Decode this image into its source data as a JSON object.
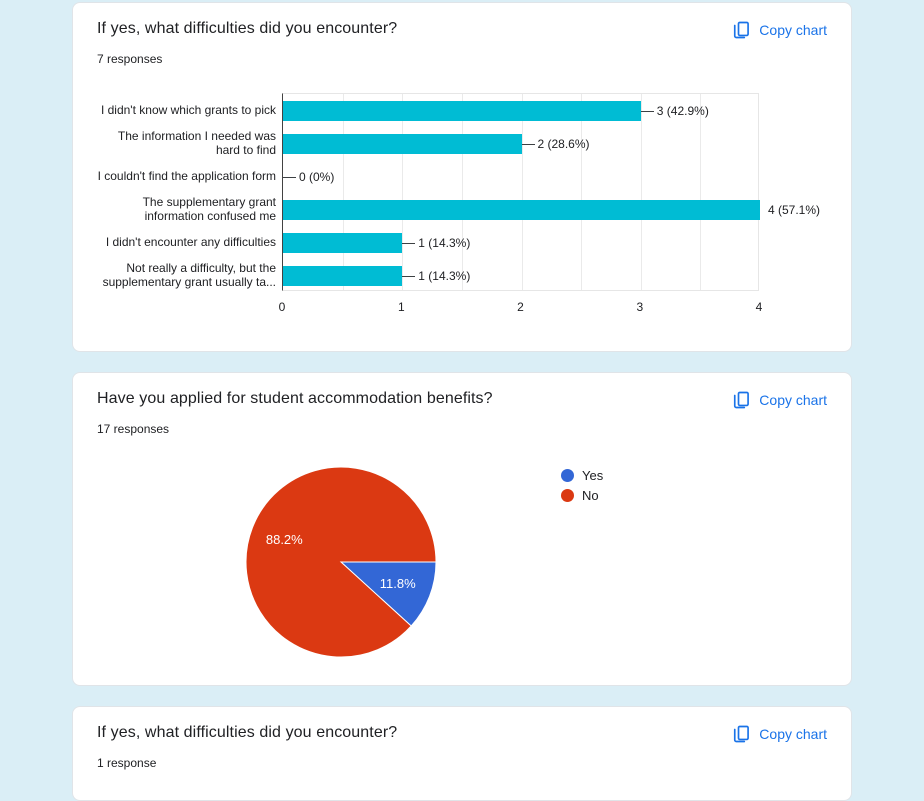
{
  "theme": {
    "page_background": "#daeef6",
    "card_background": "#ffffff",
    "card_border": "#e0e4e8",
    "accent_blue": "#1a73e8",
    "text_primary": "#202124"
  },
  "cards": [
    {
      "title": "If yes, what difficulties did you encounter?",
      "responses_text": "7 responses",
      "copy_label": "Copy chart"
    },
    {
      "title": "Have you applied for student accommodation benefits?",
      "responses_text": "17 responses",
      "copy_label": "Copy chart"
    },
    {
      "title": "If yes, what difficulties did you encounter?",
      "responses_text": "1 response",
      "copy_label": "Copy chart"
    }
  ],
  "chart_data": [
    {
      "type": "bar",
      "orientation": "horizontal",
      "title": "If yes, what difficulties did you encounter?",
      "categories": [
        "I didn't know which grants to pick",
        "The information I needed was\nhard to find",
        "I couldn't find the application form",
        "The supplementary grant\ninformation confused me",
        "I didn't encounter any difficulties",
        "Not really a difficulty, but the\nsupplementary grant usually ta..."
      ],
      "values": [
        3,
        2,
        0,
        4,
        1,
        1
      ],
      "value_labels": [
        "3 (42.9%)",
        "2 (28.6%)",
        "0 (0%)",
        "4 (57.1%)",
        "1 (14.3%)",
        "1 (14.3%)"
      ],
      "xlim": [
        0,
        4
      ],
      "xticks": [
        0,
        1,
        2,
        3,
        4
      ],
      "grid": true,
      "bar_color": "#00bcd4"
    },
    {
      "type": "pie",
      "title": "Have you applied for student accommodation benefits?",
      "labels": [
        "Yes",
        "No"
      ],
      "values": [
        2,
        15
      ],
      "percent_labels": [
        "11.8%",
        "88.2%"
      ],
      "colors": [
        "#3367d6",
        "#db3912"
      ],
      "legend_position": "right",
      "start_angle_deg": 0,
      "direction": "clockwise"
    }
  ]
}
